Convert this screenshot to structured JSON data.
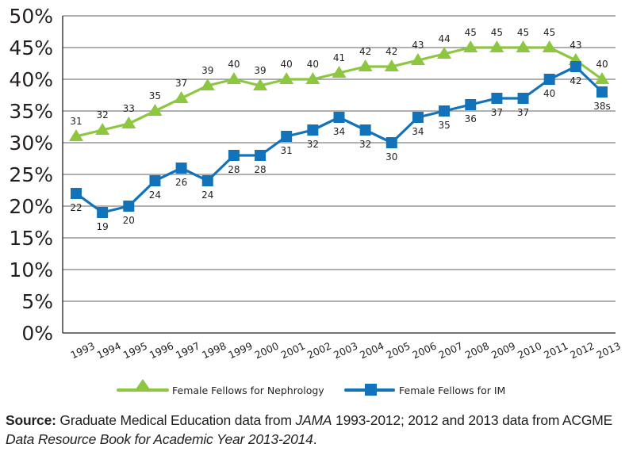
{
  "chart_data": {
    "type": "line",
    "title": "",
    "xlabel": "",
    "ylabel": "",
    "ylim": [
      0,
      50
    ],
    "yticks": [
      0,
      5,
      10,
      15,
      20,
      25,
      30,
      35,
      40,
      45,
      50
    ],
    "ytick_labels": [
      "0%",
      "5%",
      "10%",
      "15%",
      "20%",
      "25%",
      "30%",
      "35%",
      "40%",
      "45%",
      "50%"
    ],
    "grid": "horizontal",
    "legend_position": "bottom",
    "categories": [
      "1993",
      "1994",
      "1995",
      "1996",
      "1997",
      "1998",
      "1999",
      "2000",
      "2001",
      "2002",
      "2003",
      "2004",
      "2005",
      "2006",
      "2007",
      "2008",
      "2009",
      "2010",
      "2011",
      "2012",
      "2013"
    ],
    "series": [
      {
        "name": "Female Fellows for Nephrology",
        "color": "#8dc63f",
        "marker": "triangle",
        "values": [
          31,
          32,
          33,
          35,
          37,
          39,
          40,
          39,
          40,
          40,
          41,
          42,
          42,
          43,
          44,
          45,
          45,
          45,
          45,
          43,
          40
        ],
        "labels": [
          "31",
          "32",
          "33",
          "35",
          "37",
          "39",
          "40",
          "39",
          "40",
          "40",
          "41",
          "42",
          "42",
          "43",
          "44",
          "45",
          "45",
          "45",
          "45",
          "43",
          "40"
        ],
        "label_position": "above"
      },
      {
        "name": "Female Fellows for IM",
        "color": "#1273ba",
        "marker": "square",
        "values": [
          22,
          19,
          20,
          24,
          26,
          24,
          28,
          28,
          31,
          32,
          34,
          32,
          30,
          34,
          35,
          36,
          37,
          37,
          40,
          42,
          38
        ],
        "labels": [
          "22",
          "19",
          "20",
          "24",
          "26",
          "24",
          "28",
          "28",
          "31",
          "32",
          "34",
          "32",
          "30",
          "34",
          "35",
          "36",
          "37",
          "37",
          "40",
          "42",
          "38s"
        ],
        "label_position": "below"
      }
    ]
  },
  "source": {
    "label": "Source:",
    "text_1": " Graduate Medical Education data from ",
    "italic_1": "JAMA",
    "text_2": " 1993-2012; 2012 and 2013 data from ACGME ",
    "italic_2": "Data Resource Book for Academic Year 2013-2014",
    "text_3": "."
  }
}
